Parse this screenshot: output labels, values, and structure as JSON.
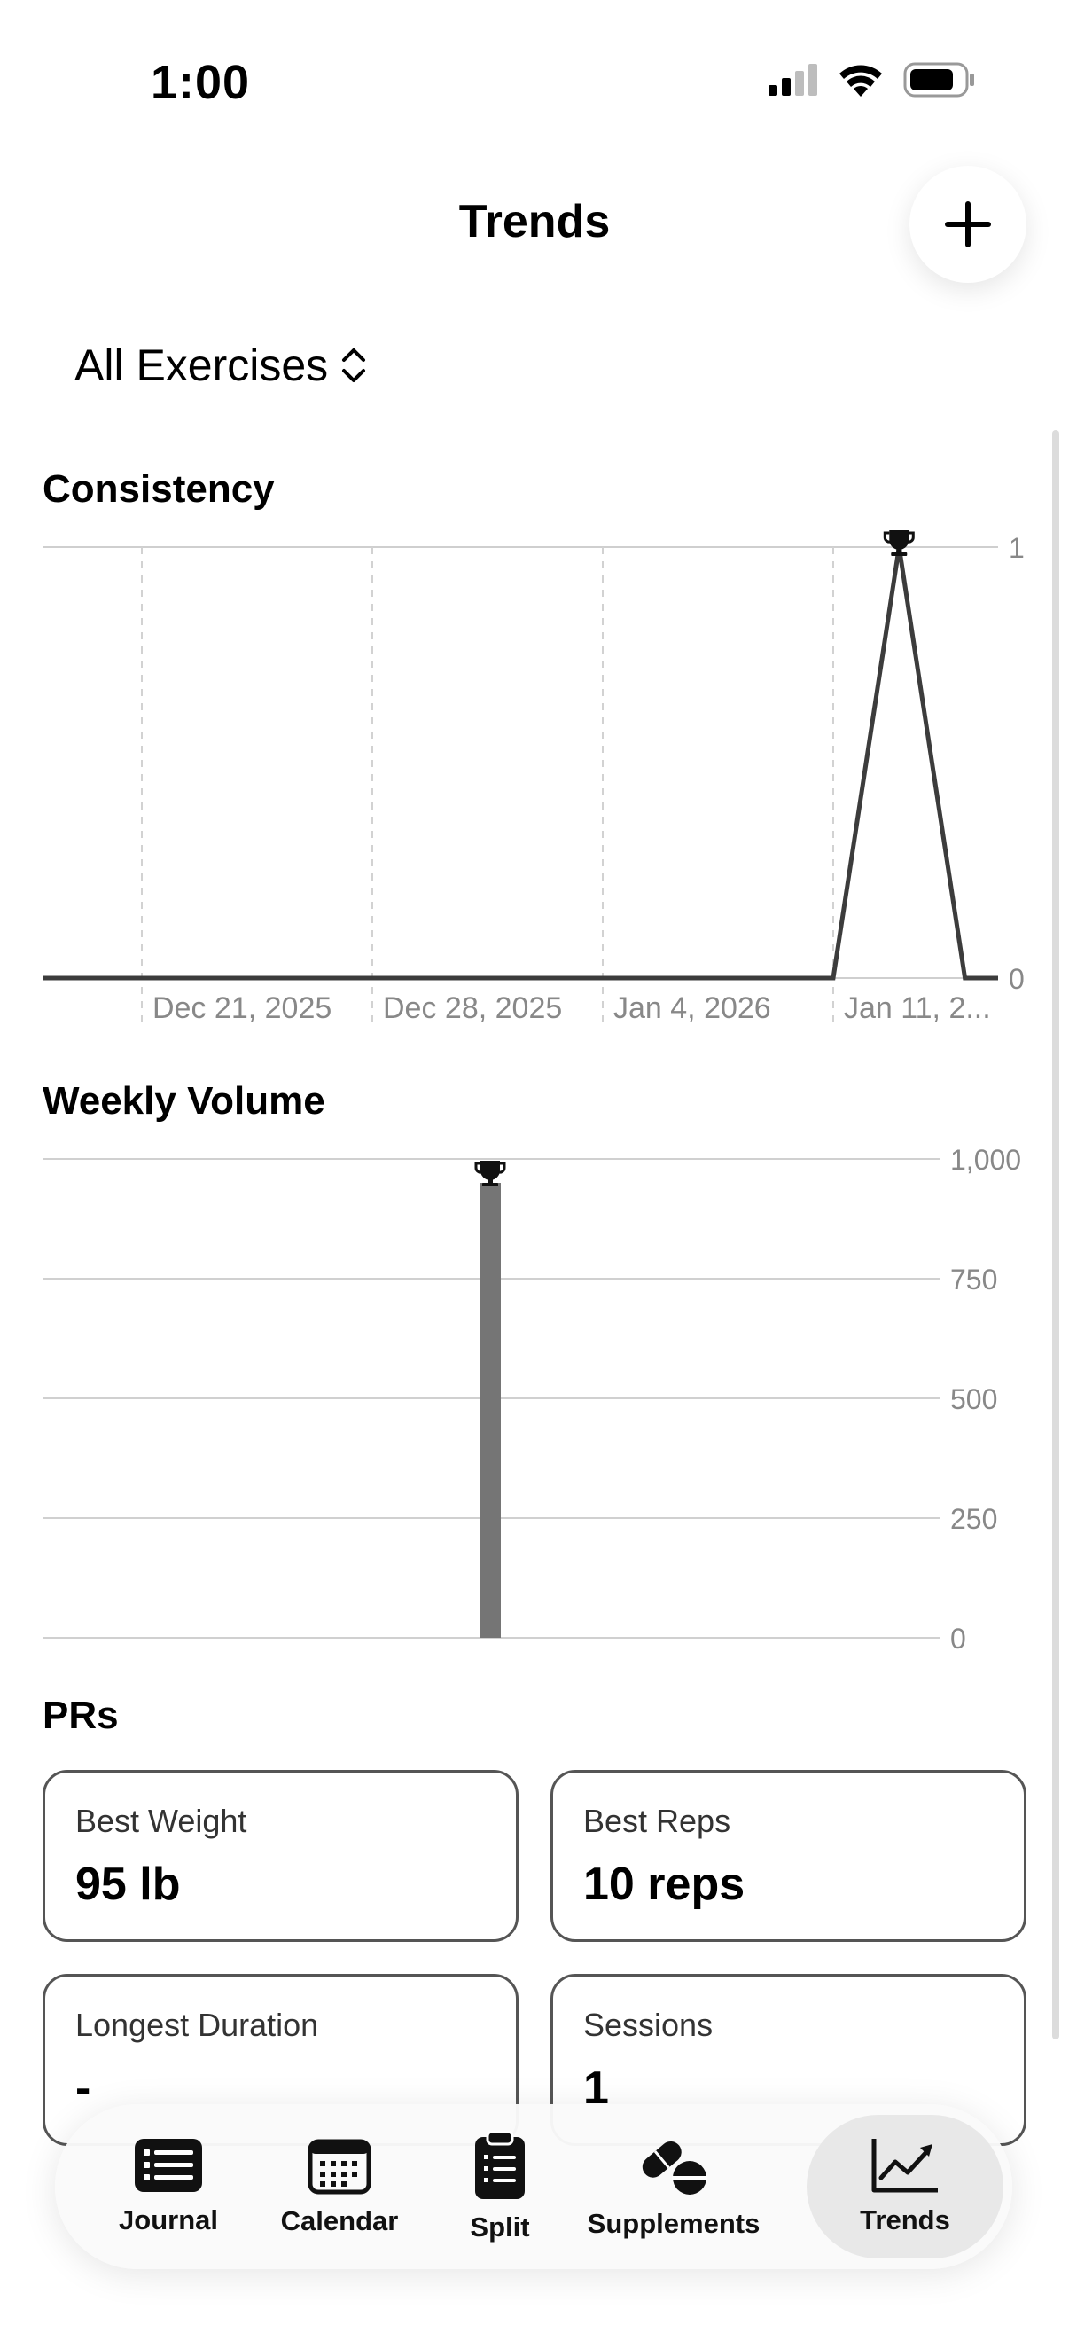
{
  "status_bar": {
    "time": "1:00"
  },
  "header": {
    "title": "Trends",
    "add_icon": "plus-icon"
  },
  "filter": {
    "selected": "All Exercises",
    "icon": "chevron-up-down-icon"
  },
  "consistency": {
    "title": "Consistency",
    "chart_data": {
      "type": "line",
      "title": "Consistency",
      "x_tick_labels": [
        "Dec 21, 2025",
        "Dec 28, 2025",
        "Jan 4, 2026",
        "Jan 11, 2..."
      ],
      "y_tick_labels": [
        "1",
        "0"
      ],
      "ylim": [
        0,
        1
      ],
      "x": [
        "Dec 15, 2025",
        "Dec 21, 2025",
        "Dec 28, 2025",
        "Jan 4, 2026",
        "Jan 11, 2026",
        "Jan 13, 2026",
        "Jan 15, 2026",
        "Jan 21, 2026"
      ],
      "values": [
        0,
        0,
        0,
        0,
        0,
        1,
        0,
        0
      ],
      "pr_marker": {
        "x": "Jan 13, 2026",
        "value": 1,
        "icon": "trophy-icon"
      },
      "grid": true
    }
  },
  "weekly_volume": {
    "title": "Weekly Volume",
    "chart_data": {
      "type": "bar",
      "title": "Weekly Volume",
      "y_tick_labels": [
        "1,000",
        "750",
        "500",
        "250",
        "0"
      ],
      "ylim": [
        0,
        1000
      ],
      "values": [
        950
      ],
      "pr_marker": {
        "value": 950,
        "icon": "trophy-icon"
      },
      "grid": true
    }
  },
  "prs": {
    "title": "PRs",
    "cards": [
      {
        "label": "Best Weight",
        "value": "95 lb"
      },
      {
        "label": "Best Reps",
        "value": "10 reps"
      },
      {
        "label": "Longest Duration",
        "value": "-"
      },
      {
        "label": "Sessions",
        "value": "1"
      }
    ]
  },
  "tabs": [
    {
      "label": "Journal",
      "icon": "journal-list-icon",
      "active": false
    },
    {
      "label": "Calendar",
      "icon": "calendar-icon",
      "active": false
    },
    {
      "label": "Split",
      "icon": "clipboard-icon",
      "active": false
    },
    {
      "label": "Supplements",
      "icon": "pills-icon",
      "active": false
    },
    {
      "label": "Trends",
      "icon": "trend-chart-icon",
      "active": true
    }
  ]
}
